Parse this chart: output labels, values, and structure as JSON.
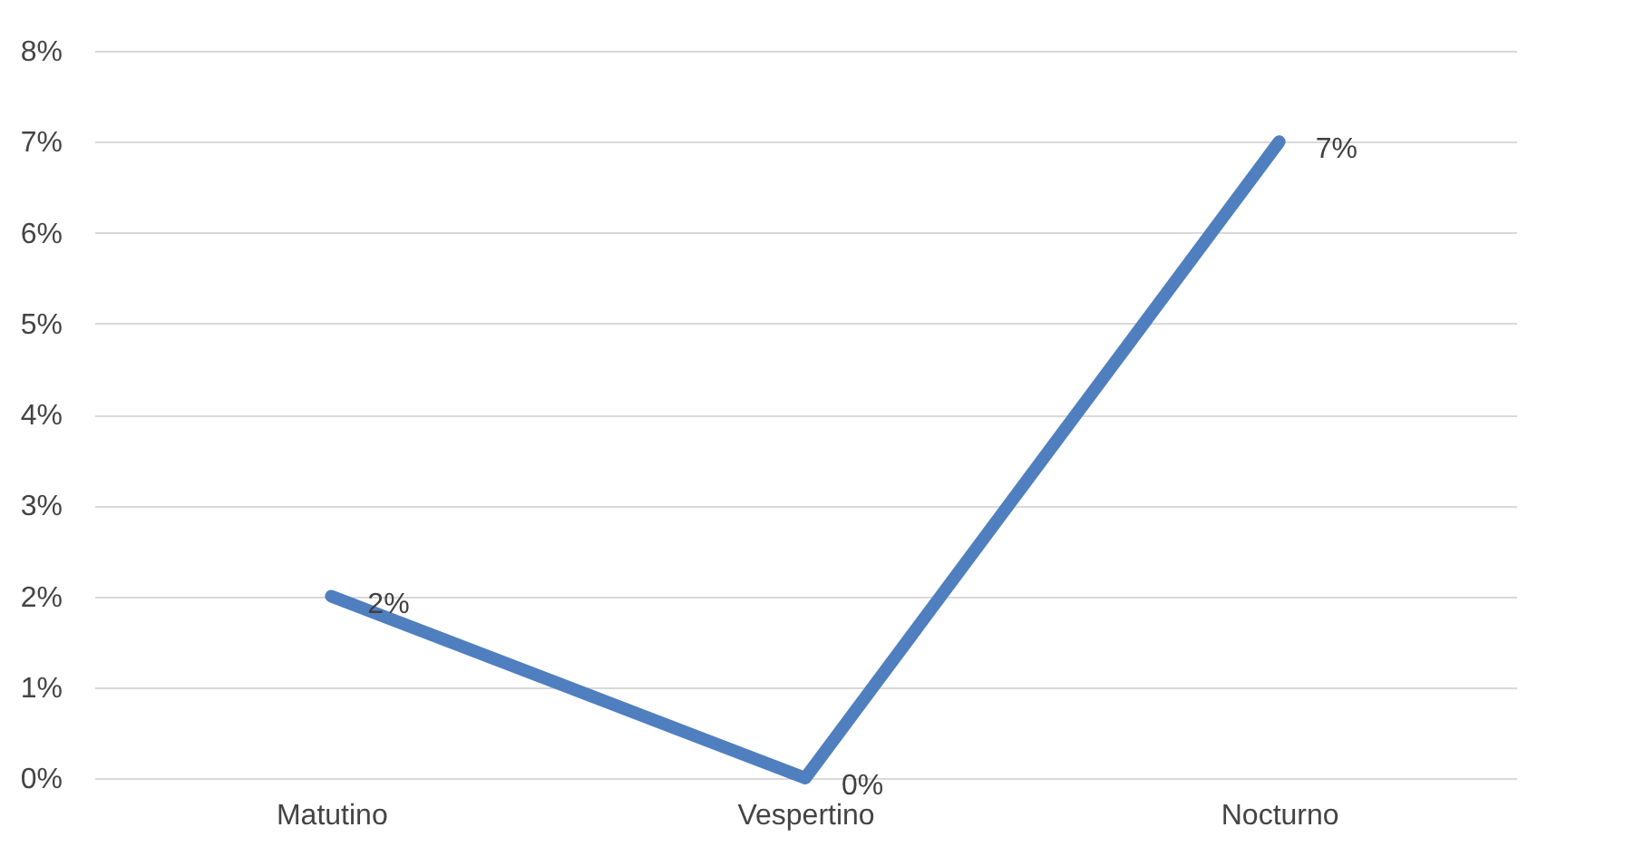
{
  "chart_data": {
    "type": "line",
    "categories": [
      "Matutino",
      "Vespertino",
      "Nocturno"
    ],
    "series": [
      {
        "color": "#4f7fbf",
        "values": [
          2,
          0,
          7
        ],
        "value_labels": [
          "2%",
          "0%",
          "7%"
        ]
      }
    ],
    "ylim": [
      0,
      8
    ],
    "yticks": [
      {
        "value": 0,
        "label": "0%"
      },
      {
        "value": 1,
        "label": "1%"
      },
      {
        "value": 2,
        "label": "2%"
      },
      {
        "value": 3,
        "label": "3%"
      },
      {
        "value": 4,
        "label": "4%"
      },
      {
        "value": 5,
        "label": "5%"
      },
      {
        "value": 6,
        "label": "6%"
      },
      {
        "value": 7,
        "label": "7%"
      },
      {
        "value": 8,
        "label": "8%"
      }
    ],
    "grid": "y",
    "marker": "none",
    "line_style": "solid",
    "legend": false
  }
}
